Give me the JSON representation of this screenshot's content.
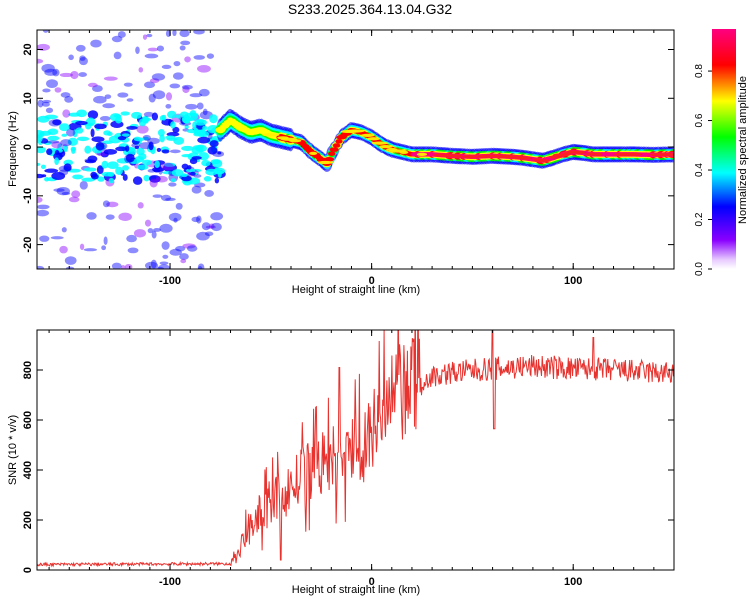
{
  "page_title": "S233.2025.364.13.04.G32",
  "chart_data": [
    {
      "type": "heatmap",
      "title": "S233.2025.364.13.04.G32",
      "xlabel": "Height of straight line (km)",
      "ylabel": "Frequency (Hz)",
      "xlim": [
        -166,
        150
      ],
      "ylim": [
        -25,
        24
      ],
      "xticks": [
        -100,
        0,
        100
      ],
      "xtick_labels": [
        "-100",
        "0",
        "100"
      ],
      "yticks": [
        -20,
        -10,
        0,
        10,
        20
      ],
      "ytick_labels": [
        "-20",
        "-10",
        "0",
        "10",
        "20"
      ],
      "colorbar": {
        "label": "Normalized spectral amplitude",
        "range": [
          0,
          0.97
        ],
        "ticks": [
          0.0,
          0.2,
          0.4,
          0.6,
          0.8
        ],
        "tick_labels": [
          "0.0",
          "0.2",
          "0.4",
          "0.6",
          "0.8"
        ],
        "colors": [
          "#ffffff",
          "#8a00ff",
          "#0000ff",
          "#00ffff",
          "#00ff00",
          "#ffff00",
          "#ff0000",
          "#ff0080"
        ]
      },
      "ridge": {
        "heights": [
          -75,
          -70,
          -65,
          -60,
          -55,
          -50,
          -45,
          -40,
          -35,
          -30,
          -25,
          -22,
          -20,
          -15,
          -10,
          -5,
          0,
          5,
          10,
          15,
          20,
          30,
          40,
          50,
          60,
          70,
          75,
          80,
          85,
          90,
          95,
          100,
          105,
          110,
          120,
          130,
          140,
          150
        ],
        "frequencies": [
          3.5,
          5.5,
          4.0,
          3.0,
          3.5,
          2.5,
          2.0,
          1.5,
          1.0,
          -1.0,
          -2.5,
          -3.5,
          -1.5,
          2.0,
          3.5,
          3.0,
          2.0,
          0.5,
          -0.5,
          -1.0,
          -1.5,
          -1.5,
          -1.8,
          -2.0,
          -1.8,
          -2.0,
          -2.2,
          -2.5,
          -2.8,
          -2.2,
          -1.5,
          -1.0,
          -1.2,
          -1.5,
          -1.5,
          -1.5,
          -1.6,
          -1.5
        ]
      },
      "noisy_region_below_km": -75
    },
    {
      "type": "line",
      "xlabel": "Height of straight line (km)",
      "ylabel": "SNR (10 * v/v)",
      "xlim": [
        -166,
        150
      ],
      "ylim": [
        0,
        960
      ],
      "xticks": [
        -100,
        0,
        100
      ],
      "xtick_labels": [
        "-100",
        "0",
        "100"
      ],
      "yticks": [
        0,
        200,
        400,
        600,
        800
      ],
      "ytick_labels": [
        "0",
        "200",
        "400",
        "600",
        "800"
      ],
      "color": "#e8322e",
      "trend": {
        "x": [
          -166,
          -70,
          -65,
          -60,
          -50,
          -40,
          -30,
          -20,
          -10,
          0,
          10,
          20,
          30,
          40,
          60,
          80,
          100,
          120,
          150
        ],
        "y": [
          22,
          25,
          90,
          180,
          270,
          330,
          400,
          440,
          470,
          540,
          660,
          740,
          775,
          790,
          805,
          815,
          805,
          800,
          785
        ]
      },
      "spikes": [
        {
          "x": -16,
          "y": 810
        },
        {
          "x": 60,
          "y": 960
        },
        {
          "x": 60.8,
          "y": 565
        },
        {
          "x": 110,
          "y": 930
        },
        {
          "x": -45,
          "y": 40
        }
      ]
    }
  ]
}
